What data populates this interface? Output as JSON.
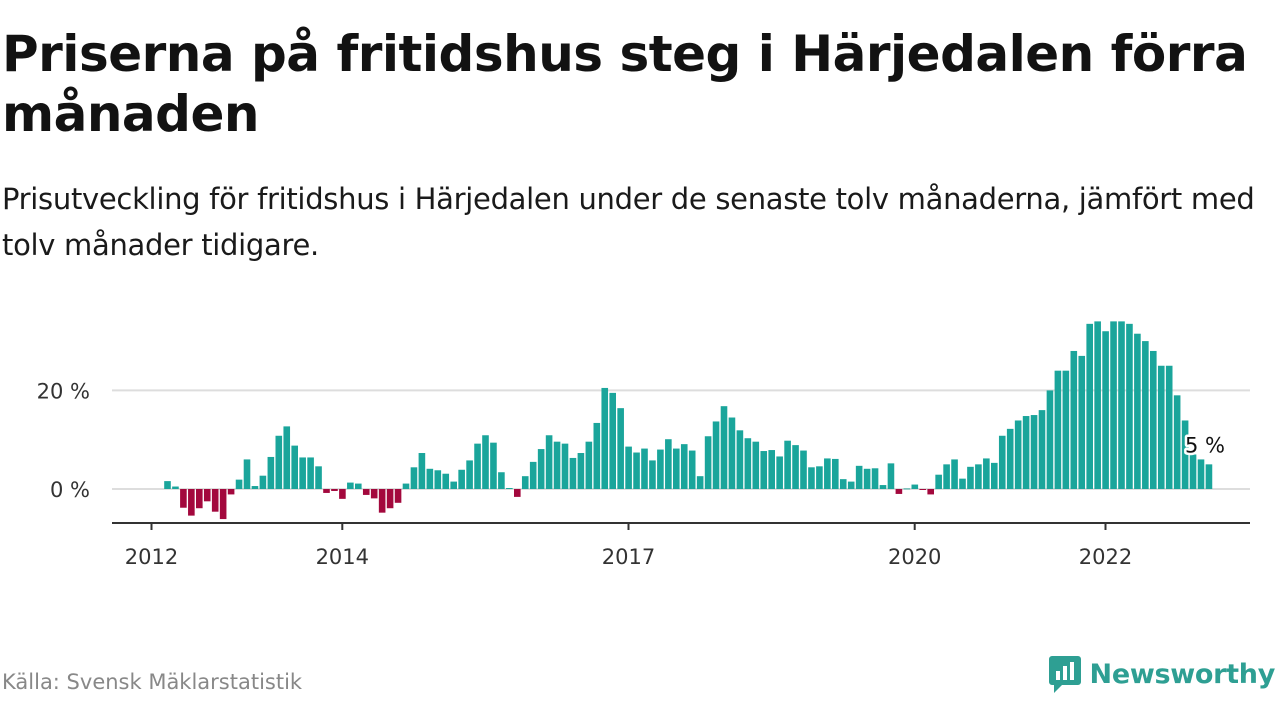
{
  "header": {
    "title": "Priserna på fritidshus steg i Härjedalen förra månaden",
    "subtitle": "Prisutveckling för fritidshus i Härjedalen under de senaste tolv månaderna, jämfört med tolv månader tidigare."
  },
  "footer": {
    "source": "Källa: Svensk Mäklarstatistik",
    "brand": "Newsworthy",
    "brand_icon": "newsworthy-logo-icon"
  },
  "colors": {
    "positive": "#1aa59b",
    "negative": "#a3083d",
    "grid": "#dddddd",
    "axis": "#333333",
    "brand": "#2e9f93"
  },
  "chart_data": {
    "type": "bar",
    "unit": "%",
    "x_start": "2012-01",
    "x_end": "2023-02",
    "x_ticks": [
      {
        "label": "2012",
        "date": "2012-01"
      },
      {
        "label": "2014",
        "date": "2014-01"
      },
      {
        "label": "2017",
        "date": "2017-01"
      },
      {
        "label": "2020",
        "date": "2020-01"
      },
      {
        "label": "2022",
        "date": "2022-01"
      }
    ],
    "y_ticks": [
      {
        "label": "0 %",
        "value": 0
      },
      {
        "label": "20 %",
        "value": 20
      }
    ],
    "ylim": [
      -6.8,
      36
    ],
    "grid": true,
    "end_label": "5 %",
    "values": [
      1.6,
      0.5,
      -3.8,
      -5.4,
      -3.9,
      -2.5,
      -4.6,
      -6.1,
      -1.1,
      1.9,
      6.0,
      0.6,
      2.7,
      6.5,
      10.8,
      12.7,
      8.8,
      6.4,
      6.4,
      4.6,
      -0.8,
      -0.4,
      -2.0,
      1.3,
      1.1,
      -1.2,
      -1.9,
      -4.8,
      -3.9,
      -2.8,
      1.1,
      4.4,
      7.3,
      4.1,
      3.8,
      3.1,
      1.5,
      3.9,
      5.8,
      9.2,
      10.9,
      9.4,
      3.4,
      0.2,
      -1.6,
      2.6,
      5.5,
      8.1,
      10.9,
      9.6,
      9.2,
      6.3,
      7.3,
      9.6,
      13.4,
      20.5,
      19.5,
      16.4,
      8.6,
      7.4,
      8.2,
      5.8,
      8.0,
      10.1,
      8.2,
      9.1,
      7.8,
      2.6,
      10.7,
      13.7,
      16.8,
      14.5,
      11.9,
      10.3,
      9.6,
      7.7,
      7.9,
      6.6,
      9.8,
      8.9,
      7.8,
      4.4,
      4.6,
      6.2,
      6.1,
      2.0,
      1.5,
      4.7,
      4.1,
      4.2,
      0.8,
      5.2,
      -1.0,
      0.1,
      0.9,
      -0.2,
      -1.1,
      2.9,
      5.0,
      6.0,
      2.1,
      4.5,
      5.0,
      6.2,
      5.3,
      10.8,
      12.2,
      13.9,
      14.8,
      15.0,
      16.0,
      20.0,
      24.0,
      24.0,
      28.0,
      27.0,
      33.5,
      34.0,
      32.0,
      34.0,
      34.0,
      33.5,
      31.5,
      30.0,
      28.0,
      25.0,
      25.0,
      19.0,
      13.9,
      7.0,
      6.0,
      5.0
    ]
  }
}
